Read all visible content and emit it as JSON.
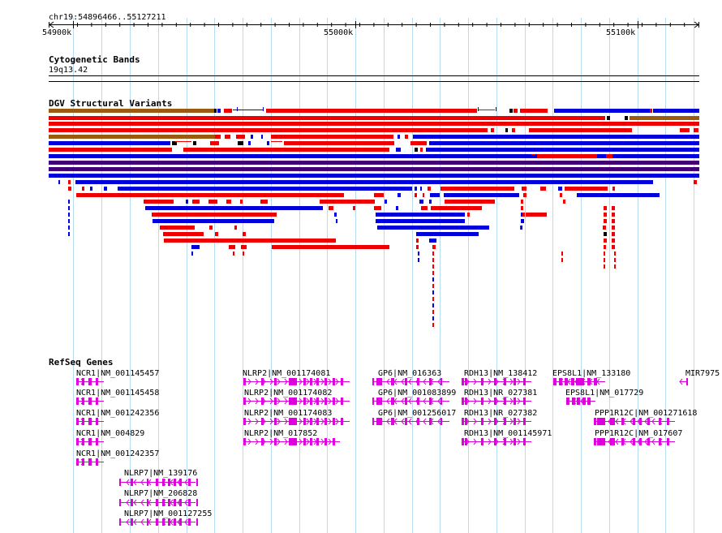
{
  "header": {
    "location": "chr19:54896466..55127211"
  },
  "ruler": {
    "ticks": [
      "54900k",
      "55000k",
      "55100k"
    ]
  },
  "tracks": {
    "cytoband": {
      "title": "Cytogenetic Bands",
      "band": "19q13.42"
    },
    "dgv": {
      "title": "DGV Structural Variants"
    },
    "refseq": {
      "title": "RefSeq Genes"
    }
  },
  "colors": {
    "gain": "#ee0000",
    "loss": "#0000dd",
    "complex": "#9a5a10",
    "inversion": "#440077",
    "gene": "#dd00dd",
    "grid": "#b7dcf0"
  },
  "genes": [
    {
      "label": "NCR1|NM_001145457"
    },
    {
      "label": "NCR1|NM_001145458"
    },
    {
      "label": "NCR1|NM_001242356"
    },
    {
      "label": "NCR1|NM_004829"
    },
    {
      "label": "NCR1|NM_001242357"
    },
    {
      "label": "NLRP7|NM_139176"
    },
    {
      "label": "NLRP7|NM_206828"
    },
    {
      "label": "NLRP7|NM_001127255"
    },
    {
      "label": "NLRP2|NM_001174081"
    },
    {
      "label": "NLRP2|NM_001174082"
    },
    {
      "label": "NLRP2|NM_001174083"
    },
    {
      "label": "NLRP2|NM_017852"
    },
    {
      "label": "GP6|NM_016363"
    },
    {
      "label": "GP6|NM_001083899"
    },
    {
      "label": "GP6|NM_001256017"
    },
    {
      "label": "RDH13|NM_138412"
    },
    {
      "label": "RDH13|NR_027381"
    },
    {
      "label": "RDH13|NR_027382"
    },
    {
      "label": "RDH13|NM_001145971"
    },
    {
      "label": "EPS8L1|NM_133180"
    },
    {
      "label": "EPS8L1|NM_017729"
    },
    {
      "label": "PPP1R12C|NM_001271618"
    },
    {
      "label": "PPP1R12C|NM_017607"
    },
    {
      "label": "MIR7975"
    }
  ]
}
